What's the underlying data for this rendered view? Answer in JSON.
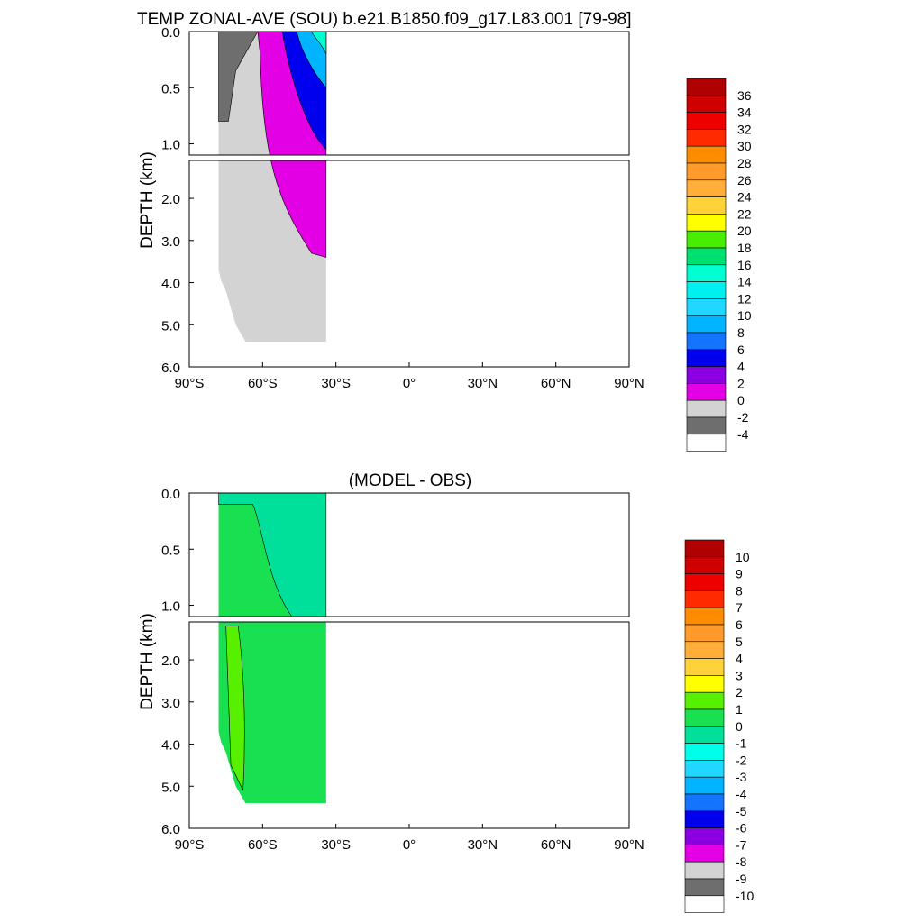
{
  "chart_data": [
    {
      "type": "heatmap",
      "title": "TEMP ZONAL-AVE (SOU) b.e21.B1850.f09_g17.L83.001 [79-98]",
      "xlabel": "",
      "ylabel": "DEPTH (km)",
      "x_ticks": [
        "90°S",
        "60°S",
        "30°S",
        "0°",
        "30°N",
        "60°N",
        "90°N"
      ],
      "x_range": [
        -90,
        90
      ],
      "y_ticks_upper": [
        "0.0",
        "0.5",
        "1.0"
      ],
      "y_ticks_lower": [
        "2.0",
        "3.0",
        "4.0",
        "5.0",
        "6.0"
      ],
      "y_range_upper_km": [
        0,
        1.1
      ],
      "y_range_lower_km": [
        1.1,
        6.0
      ],
      "colorbar_labels": [
        "36",
        "34",
        "32",
        "30",
        "28",
        "26",
        "24",
        "22",
        "20",
        "18",
        "16",
        "14",
        "12",
        "10",
        "8",
        "6",
        "4",
        "2",
        "0",
        "-2",
        "-4"
      ],
      "colorbar_colors": [
        "#b00000",
        "#cf0000",
        "#ee0000",
        "#ff2a00",
        "#ff8c00",
        "#ff9b2b",
        "#ffae3a",
        "#ffd23a",
        "#ffff00",
        "#48ee00",
        "#00e070",
        "#00ffd0",
        "#00f0f0",
        "#20d8ff",
        "#00b4ff",
        "#1474ff",
        "#0000ee",
        "#8a00e0",
        "#e400e4",
        "#d3d3d3",
        "#6e6e6e",
        "#ffffff"
      ],
      "field_notes": {
        "x_extent": [
          -78,
          -34
        ],
        "max_depth_km": 5.4,
        "values_by_region": {
          "near_antarctica_surface": -2,
          "deep_and_south": 0,
          "mid_latitude_intermediate": 2,
          "upper_ocean_north_edge": 16
        }
      }
    },
    {
      "type": "heatmap",
      "title": "(MODEL - OBS)",
      "xlabel": "",
      "ylabel": "DEPTH (km)",
      "x_ticks": [
        "90°S",
        "60°S",
        "30°S",
        "0°",
        "30°N",
        "60°N",
        "90°N"
      ],
      "x_range": [
        -90,
        90
      ],
      "y_ticks_upper": [
        "0.0",
        "0.5",
        "1.0"
      ],
      "y_ticks_lower": [
        "2.0",
        "3.0",
        "4.0",
        "5.0",
        "6.0"
      ],
      "y_range_upper_km": [
        0,
        1.1
      ],
      "y_range_lower_km": [
        1.1,
        6.0
      ],
      "colorbar_labels": [
        "10",
        "9",
        "8",
        "7",
        "6",
        "5",
        "4",
        "3",
        "2",
        "1",
        "0",
        "-1",
        "-2",
        "-3",
        "-4",
        "-5",
        "-6",
        "-7",
        "-8",
        "-9",
        "-10"
      ],
      "colorbar_colors": [
        "#b00000",
        "#cf0000",
        "#ee0000",
        "#ff2a00",
        "#ff8c00",
        "#ff9b2b",
        "#ffae3a",
        "#ffd23a",
        "#ffff00",
        "#56f000",
        "#19e050",
        "#00e09a",
        "#00ffe8",
        "#20d8ff",
        "#00b4ff",
        "#1474ff",
        "#0000ee",
        "#8a00e0",
        "#e400e4",
        "#d3d3d3",
        "#6e6e6e",
        "#ffffff"
      ],
      "field_notes": {
        "x_extent": [
          -78,
          -34
        ],
        "max_depth_km": 5.4,
        "values_by_region": {
          "upper_ocean": -0.5,
          "deep_ocean": 0.5,
          "near_antarctic_slope": 1.5
        }
      }
    }
  ]
}
